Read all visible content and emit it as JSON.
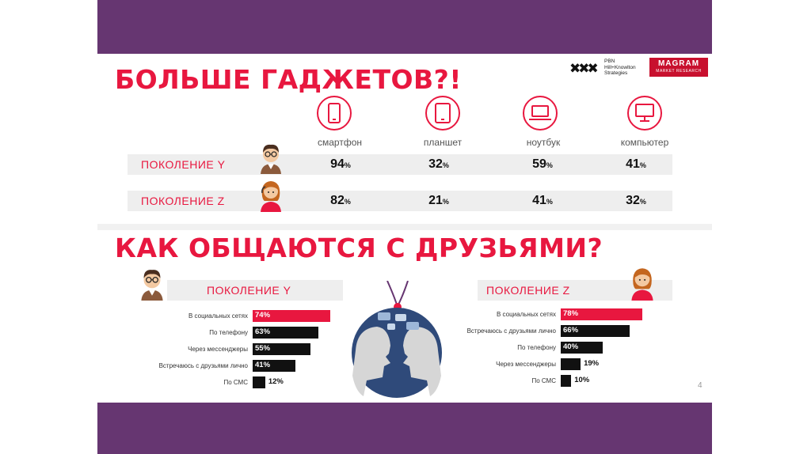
{
  "titles": {
    "gadgets": "БОЛЬШЕ ГАДЖЕТОВ?!",
    "communication": "КАК ОБЩАЮТСЯ С ДРУЗЬЯМИ?"
  },
  "logos": {
    "pbn_lines": [
      "PBN",
      "Hill+Knowlton",
      "Strategies"
    ],
    "magram": "MAGRAM",
    "magram_sub": "MARKET RESEARCH"
  },
  "page_number": "4",
  "colors": {
    "accent": "#e8173f",
    "band": "#663671",
    "bar_dark": "#111111"
  },
  "chart_data": [
    {
      "type": "table",
      "title": "БОЛЬШЕ ГАДЖЕТОВ?!",
      "columns": [
        "смартфон",
        "планшет",
        "ноутбук",
        "компьютер"
      ],
      "column_icons": [
        "smartphone-icon",
        "tablet-icon",
        "laptop-icon",
        "desktop-icon"
      ],
      "unit": "%",
      "rows": [
        {
          "name": "ПОКОЛЕНИЕ Y",
          "values": [
            94,
            32,
            59,
            41
          ]
        },
        {
          "name": "ПОКОЛЕНИЕ Z",
          "values": [
            82,
            21,
            41,
            32
          ]
        }
      ]
    },
    {
      "type": "bar",
      "orientation": "horizontal",
      "title": "ПОКОЛЕНИЕ Y",
      "categories": [
        "В социальных сетях",
        "По телефону",
        "Через мессенджеры",
        "Встречаюсь с друзьями лично",
        "По СМС"
      ],
      "values": [
        74,
        63,
        55,
        41,
        12
      ],
      "highlight_first": true
    },
    {
      "type": "bar",
      "orientation": "horizontal",
      "title": "ПОКОЛЕНИЕ Z",
      "categories": [
        "В социальных сетях",
        "Встречаюсь с друзьями лично",
        "По телефону",
        "Через мессенджеры",
        "По СМС"
      ],
      "values": [
        78,
        66,
        40,
        19,
        10
      ],
      "highlight_first": true
    }
  ]
}
